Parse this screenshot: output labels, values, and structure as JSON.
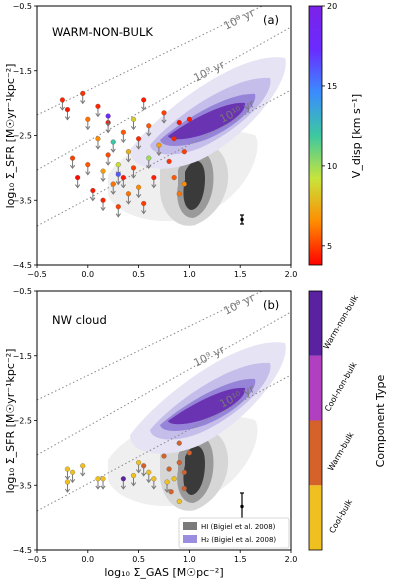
{
  "figure_labels": {
    "ylabel": "log₁₀ Σ_SFR [M☉yr⁻¹kpc⁻²]",
    "xlabel": "log₁₀ Σ_GAS [M☉pc⁻²]",
    "iso_lines": [
      "10⁸ yr",
      "10⁹ yr",
      "10¹⁰ yr"
    ]
  },
  "legend": [
    {
      "label": "HI (Bigiel et al. 2008)",
      "color": "#7a7a7a"
    },
    {
      "label": "H₂ (Bigiel et al. 2008)",
      "color": "#9b8ee0"
    }
  ],
  "colorbar_top": {
    "label": "V_disp [km s⁻¹]",
    "ticks": [
      "5",
      "10",
      "15",
      "20"
    ],
    "min": 3.8,
    "max": 20,
    "stops": [
      "#ff0000",
      "#ff8c00",
      "#c8e43c",
      "#3cc8a0",
      "#3a8cff",
      "#6a2bff",
      "#7b22e8"
    ]
  },
  "colorbar_bottom": {
    "label": "Component Type",
    "categories": [
      {
        "name": "Cool-bulk",
        "color": "#f0c020"
      },
      {
        "name": "Warm-bulk",
        "color": "#d4622a"
      },
      {
        "name": "Cool-non-bulk",
        "color": "#b040c0"
      },
      {
        "name": "Warm-non-bulk",
        "color": "#5a22a0"
      }
    ]
  },
  "chart_data": [
    {
      "type": "scatter",
      "title": "WARM-NON-BULK",
      "panel": "(a)",
      "xlim": [
        -0.5,
        2.0
      ],
      "ylim": [
        -4.5,
        -0.5
      ],
      "xticks": [
        "−0.5",
        "0.0",
        "0.5",
        "1.0",
        "1.5",
        "2.0"
      ],
      "yticks": [
        "−4.5",
        "−3.5",
        "−2.5",
        "−1.5",
        "−0.5"
      ],
      "xtick_values": [
        -0.5,
        0.0,
        0.5,
        1.0,
        1.5,
        2.0
      ],
      "ytick_values": [
        -4.5,
        -3.5,
        -2.5,
        -1.5,
        -0.5
      ],
      "isochrones_log_tdep": [
        8,
        9,
        10
      ],
      "error_bar": {
        "x": 1.5,
        "y": -3.8,
        "dy": 0.1
      },
      "points": [
        {
          "x": -0.25,
          "y": -1.95,
          "v": 4.5,
          "upper": true
        },
        {
          "x": -0.2,
          "y": -2.1,
          "v": 4.2,
          "upper": true
        },
        {
          "x": -0.15,
          "y": -2.85,
          "v": 5.0,
          "upper": true
        },
        {
          "x": -0.1,
          "y": -3.15,
          "v": 4.0,
          "upper": true
        },
        {
          "x": -0.05,
          "y": -1.85,
          "v": 4.8,
          "upper": true
        },
        {
          "x": 0.0,
          "y": -2.25,
          "v": 6.0,
          "upper": true
        },
        {
          "x": 0.0,
          "y": -2.95,
          "v": 5.5,
          "upper": true
        },
        {
          "x": 0.05,
          "y": -3.35,
          "v": 4.3,
          "upper": true
        },
        {
          "x": 0.1,
          "y": -2.55,
          "v": 6.5,
          "upper": true
        },
        {
          "x": 0.1,
          "y": -2.05,
          "v": 4.5,
          "upper": true
        },
        {
          "x": 0.15,
          "y": -3.05,
          "v": 7.0,
          "upper": true
        },
        {
          "x": 0.15,
          "y": -3.5,
          "v": 4.5,
          "upper": true
        },
        {
          "x": 0.2,
          "y": -2.8,
          "v": 5.2,
          "upper": true
        },
        {
          "x": 0.2,
          "y": -2.3,
          "v": 4.1,
          "upper": true
        },
        {
          "x": 0.25,
          "y": -3.25,
          "v": 6.0,
          "upper": true
        },
        {
          "x": 0.25,
          "y": -2.6,
          "v": 12.0,
          "upper": true
        },
        {
          "x": 0.3,
          "y": -3.6,
          "v": 5.0,
          "upper": true
        },
        {
          "x": 0.3,
          "y": -2.95,
          "v": 9.0,
          "upper": true
        },
        {
          "x": 0.35,
          "y": -2.45,
          "v": 5.5,
          "upper": true
        },
        {
          "x": 0.35,
          "y": -3.15,
          "v": 4.2,
          "upper": true
        },
        {
          "x": 0.4,
          "y": -2.75,
          "v": 7.5,
          "upper": true
        },
        {
          "x": 0.4,
          "y": -3.4,
          "v": 6.0,
          "upper": true
        },
        {
          "x": 0.45,
          "y": -2.25,
          "v": 8.5,
          "upper": true
        },
        {
          "x": 0.45,
          "y": -3.0,
          "v": 5.0,
          "upper": true
        },
        {
          "x": 0.5,
          "y": -2.55,
          "v": 4.6,
          "upper": true
        },
        {
          "x": 0.5,
          "y": -3.3,
          "v": 6.5,
          "upper": true
        },
        {
          "x": 0.55,
          "y": -1.95,
          "v": 4.3,
          "upper": true
        },
        {
          "x": 0.55,
          "y": -3.55,
          "v": 5.0,
          "upper": true
        },
        {
          "x": 0.6,
          "y": -2.85,
          "v": 10.0,
          "upper": true
        },
        {
          "x": 0.6,
          "y": -2.35,
          "v": 5.5,
          "upper": true
        },
        {
          "x": 0.65,
          "y": -3.15,
          "v": 4.4,
          "upper": true
        },
        {
          "x": 0.7,
          "y": -2.65,
          "v": 7.0,
          "upper": true
        },
        {
          "x": 0.75,
          "y": -2.15,
          "v": 5.0,
          "upper": true
        },
        {
          "x": 0.8,
          "y": -2.9,
          "v": 4.8,
          "upper": false
        },
        {
          "x": 0.85,
          "y": -3.15,
          "v": 5.5,
          "upper": false
        },
        {
          "x": 0.85,
          "y": -2.55,
          "v": 4.5,
          "upper": false
        },
        {
          "x": 0.9,
          "y": -3.4,
          "v": 6.0,
          "upper": false
        },
        {
          "x": 0.9,
          "y": -2.3,
          "v": 4.2,
          "upper": false
        },
        {
          "x": 0.95,
          "y": -2.75,
          "v": 5.0,
          "upper": false
        },
        {
          "x": 0.95,
          "y": -3.25,
          "v": 6.5,
          "upper": false
        },
        {
          "x": 1.0,
          "y": -2.25,
          "v": 4.3,
          "upper": false
        },
        {
          "x": 0.2,
          "y": -2.2,
          "v": 18.0,
          "upper": true
        },
        {
          "x": 0.3,
          "y": -3.1,
          "v": 16.0,
          "upper": true
        }
      ]
    },
    {
      "type": "scatter",
      "title": "NW cloud",
      "panel": "(b)",
      "xlim": [
        -0.5,
        2.0
      ],
      "ylim": [
        -4.5,
        -0.5
      ],
      "xticks": [
        "−0.5",
        "0.0",
        "0.5",
        "1.0",
        "1.5",
        "2.0"
      ],
      "yticks": [
        "−4.5",
        "−3.5",
        "−2.5",
        "−1.5",
        "−0.5"
      ],
      "xtick_values": [
        -0.5,
        0.0,
        0.5,
        1.0,
        1.5,
        2.0
      ],
      "ytick_values": [
        -4.5,
        -3.5,
        -2.5,
        -1.5,
        -0.5
      ],
      "isochrones_log_tdep": [
        8,
        9,
        10
      ],
      "error_bar": {
        "x": 1.5,
        "y": -3.85,
        "dy": 0.3
      },
      "points": [
        {
          "x": -0.2,
          "y": -3.25,
          "c": "Cool-bulk",
          "upper": true
        },
        {
          "x": -0.15,
          "y": -3.3,
          "c": "Cool-bulk",
          "upper": true
        },
        {
          "x": -0.2,
          "y": -3.45,
          "c": "Cool-bulk",
          "upper": true
        },
        {
          "x": -0.05,
          "y": -3.2,
          "c": "Cool-bulk",
          "upper": true
        },
        {
          "x": 0.1,
          "y": -3.4,
          "c": "Cool-bulk",
          "upper": true
        },
        {
          "x": 0.15,
          "y": -3.4,
          "c": "Cool-bulk",
          "upper": true
        },
        {
          "x": 0.35,
          "y": -3.4,
          "c": "Warm-non-bulk",
          "upper": true
        },
        {
          "x": 0.45,
          "y": -3.35,
          "c": "Cool-bulk",
          "upper": true
        },
        {
          "x": 0.5,
          "y": -3.15,
          "c": "Cool-bulk",
          "upper": true
        },
        {
          "x": 0.55,
          "y": -3.2,
          "c": "Warm-bulk",
          "upper": true
        },
        {
          "x": 0.6,
          "y": -3.3,
          "c": "Cool-bulk",
          "upper": true
        },
        {
          "x": 0.65,
          "y": -3.4,
          "c": "Cool-bulk",
          "upper": true
        },
        {
          "x": 0.75,
          "y": -3.05,
          "c": "Warm-bulk",
          "upper": false
        },
        {
          "x": 0.78,
          "y": -3.45,
          "c": "Cool-bulk",
          "upper": true
        },
        {
          "x": 0.8,
          "y": -3.25,
          "c": "Warm-bulk",
          "upper": false
        },
        {
          "x": 0.85,
          "y": -3.4,
          "c": "Cool-bulk",
          "upper": false
        },
        {
          "x": 0.9,
          "y": -2.85,
          "c": "Warm-bulk",
          "upper": false
        },
        {
          "x": 0.9,
          "y": -3.15,
          "c": "Warm-bulk",
          "upper": false
        },
        {
          "x": 0.95,
          "y": -3.3,
          "c": "Warm-bulk",
          "upper": false
        },
        {
          "x": 0.95,
          "y": -3.55,
          "c": "Warm-bulk",
          "upper": false
        },
        {
          "x": 1.0,
          "y": -3.0,
          "c": "Warm-bulk",
          "upper": false
        },
        {
          "x": 0.9,
          "y": -3.75,
          "c": "Cool-bulk",
          "upper": false
        },
        {
          "x": 0.82,
          "y": -3.6,
          "c": "Warm-bulk",
          "upper": false
        }
      ]
    }
  ]
}
